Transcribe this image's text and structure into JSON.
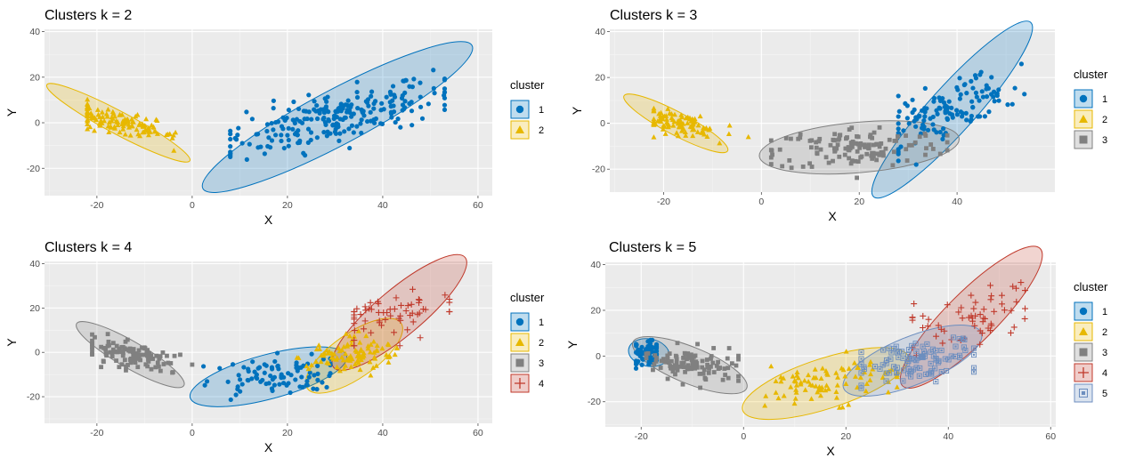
{
  "colors": {
    "panel_bg": "#ebebeb",
    "grid_major": "#ffffff",
    "cluster": [
      "#0072bd",
      "#e7b800",
      "#808080",
      "#c0392b",
      "#6c8ebf"
    ]
  },
  "chart_data": [
    {
      "type": "scatter",
      "title": "Clusters k = 2",
      "xlabel": "X",
      "ylabel": "Y",
      "xlim": [
        -31,
        63
      ],
      "ylim": [
        -32,
        41
      ],
      "xticks": [
        -20,
        0,
        20,
        40,
        60
      ],
      "yticks": [
        -20,
        0,
        20,
        40
      ],
      "xtick_labels": [
        "-20",
        "0",
        "20",
        "40",
        "60"
      ],
      "ytick_labels": [
        "-20",
        "0",
        "20",
        "40"
      ],
      "grid": true,
      "legend_title": "cluster",
      "legend_position": "right",
      "series": [
        {
          "name": "1",
          "shape": "circle",
          "x_range": [
            8,
            53
          ],
          "y_range": [
            -27,
            38
          ],
          "n": 240,
          "ellipse": {
            "cx": 30.5,
            "cy": 2.5,
            "rx": 32,
            "ry": 12,
            "angle_deg": 28
          }
        },
        {
          "name": "2",
          "shape": "triangle",
          "x_range": [
            -22,
            10
          ],
          "y_range": [
            -20,
            17
          ],
          "n": 120,
          "ellipse": {
            "cx": -15.5,
            "cy": 0,
            "rx": 17,
            "ry": 5,
            "angle_deg": -28
          }
        }
      ]
    },
    {
      "type": "scatter",
      "title": "Clusters k = 3",
      "xlabel": "X",
      "ylabel": "Y",
      "xlim": [
        -31,
        60
      ],
      "ylim": [
        -30,
        41
      ],
      "xticks": [
        -20,
        0,
        20,
        40
      ],
      "yticks": [
        -20,
        0,
        20,
        40
      ],
      "xtick_labels": [
        "-20",
        "0",
        "20",
        "40"
      ],
      "ytick_labels": [
        "-20",
        "0",
        "20",
        "40"
      ],
      "grid": true,
      "legend_title": "cluster",
      "legend_position": "right",
      "series": [
        {
          "name": "1",
          "shape": "circle",
          "x_range": [
            28,
            54
          ],
          "y_range": [
            -18,
            39
          ],
          "n": 130,
          "ellipse": {
            "cx": 39,
            "cy": 6,
            "rx": 24,
            "ry": 10,
            "angle_deg": 48
          }
        },
        {
          "name": "2",
          "shape": "triangle",
          "x_range": [
            -22,
            -1
          ],
          "y_range": [
            -18,
            17
          ],
          "n": 100,
          "ellipse": {
            "cx": -17.5,
            "cy": 0,
            "rx": 12,
            "ry": 5,
            "angle_deg": -28
          }
        },
        {
          "name": "3",
          "shape": "square",
          "x_range": [
            2,
            38
          ],
          "y_range": [
            -25,
            7
          ],
          "n": 130,
          "ellipse": {
            "cx": 20,
            "cy": -10.5,
            "rx": 20.5,
            "ry": 11,
            "angle_deg": 5
          }
        }
      ]
    },
    {
      "type": "scatter",
      "title": "Clusters k = 4",
      "xlabel": "X",
      "ylabel": "Y",
      "xlim": [
        -31,
        63
      ],
      "ylim": [
        -32,
        41
      ],
      "xticks": [
        -20,
        0,
        20,
        40,
        60
      ],
      "yticks": [
        -20,
        0,
        20,
        40
      ],
      "xtick_labels": [
        "-20",
        "0",
        "20",
        "40",
        "60"
      ],
      "ytick_labels": [
        "-20",
        "0",
        "20",
        "40"
      ],
      "grid": true,
      "legend_title": "cluster",
      "legend_position": "right",
      "series": [
        {
          "name": "1",
          "shape": "circle",
          "x_range": [
            0,
            29
          ],
          "y_range": [
            -23,
            16
          ],
          "n": 90,
          "ellipse": {
            "cx": 16,
            "cy": -11,
            "rx": 17,
            "ry": 10,
            "angle_deg": 15
          }
        },
        {
          "name": "2",
          "shape": "triangle",
          "x_range": [
            22,
            43
          ],
          "y_range": [
            -17,
            13
          ],
          "n": 100,
          "ellipse": {
            "cx": 34,
            "cy": -1.5,
            "rx": 12,
            "ry": 10,
            "angle_deg": 35
          }
        },
        {
          "name": "3",
          "shape": "square",
          "x_range": [
            -21,
            0
          ],
          "y_range": [
            -18,
            17
          ],
          "n": 110,
          "ellipse": {
            "cx": -13,
            "cy": -1,
            "rx": 13,
            "ry": 6,
            "angle_deg": -30
          }
        },
        {
          "name": "4",
          "shape": "plus",
          "x_range": [
            34,
            54
          ],
          "y_range": [
            3,
            39
          ],
          "n": 60,
          "ellipse": {
            "cx": 43.5,
            "cy": 18,
            "rx": 18,
            "ry": 10.5,
            "angle_deg": 40
          }
        }
      ]
    },
    {
      "type": "scatter",
      "title": "Clusters k = 5",
      "xlabel": "X",
      "ylabel": "Y",
      "xlim": [
        -27,
        61
      ],
      "ylim": [
        -31,
        41
      ],
      "xticks": [
        -20,
        0,
        20,
        40,
        60
      ],
      "yticks": [
        -20,
        0,
        20,
        40
      ],
      "xtick_labels": [
        "-20",
        "0",
        "20",
        "40",
        "60"
      ],
      "ytick_labels": [
        "-20",
        "0",
        "20",
        "40"
      ],
      "grid": true,
      "legend_title": "cluster",
      "legend_position": "right",
      "series": [
        {
          "name": "1",
          "shape": "circle",
          "x_range": [
            -21,
            -17
          ],
          "y_range": [
            -6,
            7
          ],
          "n": 70,
          "ellipse": {
            "cx": -18.5,
            "cy": 1.5,
            "rx": 4,
            "ry": 6,
            "angle_deg": -10
          }
        },
        {
          "name": "2",
          "shape": "triangle",
          "x_range": [
            1,
            30
          ],
          "y_range": [
            -26,
            10
          ],
          "n": 90,
          "ellipse": {
            "cx": 16,
            "cy": -12,
            "rx": 17,
            "ry": 11,
            "angle_deg": 18
          }
        },
        {
          "name": "3",
          "shape": "square",
          "x_range": [
            -19,
            -1
          ],
          "y_range": [
            -18,
            18
          ],
          "n": 110,
          "ellipse": {
            "cx": -10.5,
            "cy": -4,
            "rx": 12,
            "ry": 8,
            "angle_deg": -22
          }
        },
        {
          "name": "4",
          "shape": "plus",
          "x_range": [
            33,
            55
          ],
          "y_range": [
            -7,
            39
          ],
          "n": 60,
          "ellipse": {
            "cx": 44.5,
            "cy": 17,
            "rx": 19,
            "ry": 11,
            "angle_deg": 45
          }
        },
        {
          "name": "5",
          "shape": "boxsquare",
          "x_range": [
            23,
            45
          ],
          "y_range": [
            -15,
            12
          ],
          "n": 100,
          "ellipse": {
            "cx": 33,
            "cy": -2,
            "rx": 14.5,
            "ry": 10.5,
            "angle_deg": 22
          }
        }
      ]
    }
  ]
}
